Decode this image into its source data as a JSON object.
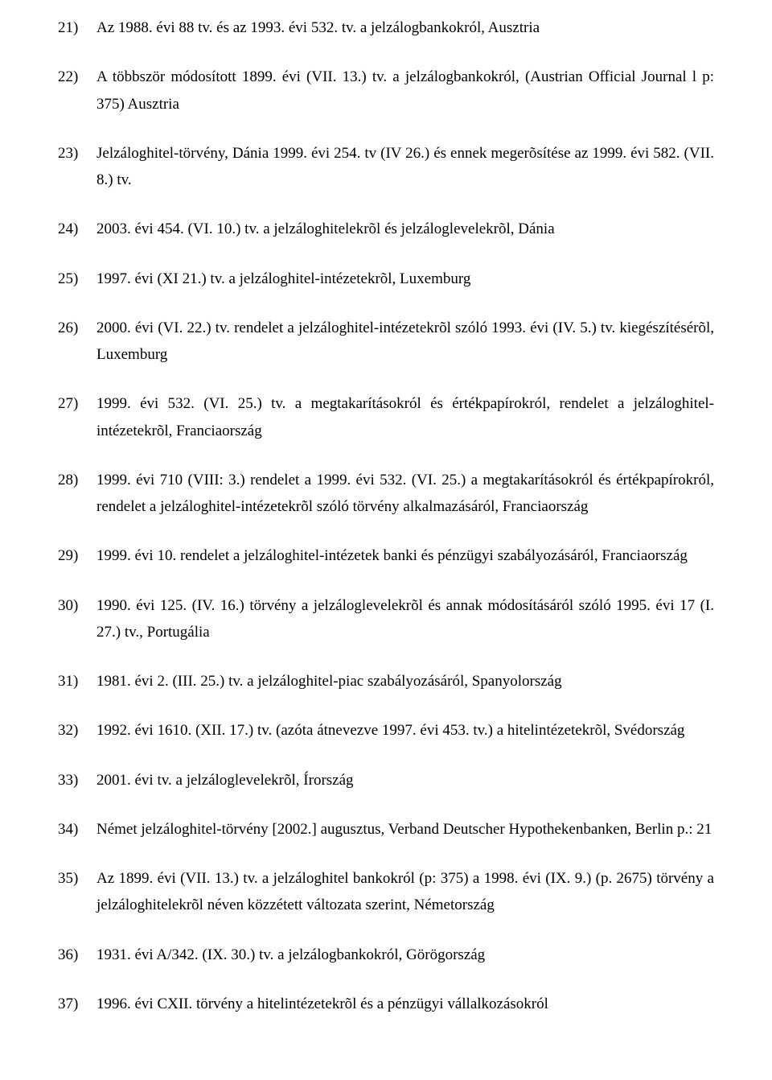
{
  "entries": [
    {
      "num": "21)",
      "text": "Az 1988. évi 88 tv. és az 1993. évi 532. tv. a jelzálogbankokról, Ausztria",
      "justify": false
    },
    {
      "num": "22)",
      "text": "A többször módosított 1899. évi (VII. 13.) tv. a jelzálogbankokról, (Austrian Official Journal l p: 375) Ausztria",
      "justify": true
    },
    {
      "num": "23)",
      "text": "Jelzáloghitel-törvény, Dánia 1999. évi 254. tv (IV 26.) és ennek megerõsítése az 1999. évi 582. (VII. 8.) tv.",
      "justify": true
    },
    {
      "num": "24)",
      "text": "2003. évi 454. (VI. 10.) tv. a jelzáloghitelekrõl és jelzáloglevelekrõl, Dánia",
      "justify": false
    },
    {
      "num": "25)",
      "text": "1997. évi (XI 21.) tv. a jelzáloghitel-intézetekrõl, Luxemburg",
      "justify": false
    },
    {
      "num": "26)",
      "text": "2000. évi (VI. 22.) tv. rendelet a jelzáloghitel-intézetekrõl szóló 1993. évi (IV. 5.) tv. kiegészítésérõl, Luxemburg",
      "justify": true
    },
    {
      "num": "27)",
      "text": "1999. évi 532. (VI. 25.) tv. a megtakarításokról és értékpapírokról, rendelet a jelzáloghitel-intézetekrõl, Franciaország",
      "justify": true
    },
    {
      "num": "28)",
      "text": "1999. évi 710 (VIII: 3.) rendelet a 1999. évi 532. (VI. 25.) a megtakarításokról és értékpapírokról, rendelet a jelzáloghitel-intézetekrõl szóló törvény alkalmazásáról, Franciaország",
      "justify": true
    },
    {
      "num": "29)",
      "text": "1999. évi 10. rendelet a jelzáloghitel-intézetek banki és pénzügyi szabályozásáról, Franciaország",
      "justify": true
    },
    {
      "num": "30)",
      "text": "1990. évi 125. (IV. 16.) törvény a jelzáloglevelekrõl és annak módosításáról szóló 1995. évi 17 (I. 27.) tv., Portugália",
      "justify": true
    },
    {
      "num": "31)",
      "text": "1981. évi 2. (III. 25.) tv. a jelzáloghitel-piac szabályozásáról, Spanyolország",
      "justify": false
    },
    {
      "num": "32)",
      "text": "1992. évi 1610. (XII. 17.) tv. (azóta átnevezve 1997. évi 453. tv.) a hitelintézetekrõl, Svédország",
      "justify": true
    },
    {
      "num": "33)",
      "text": "2001. évi tv. a jelzáloglevelekrõl, Írország",
      "justify": false
    },
    {
      "num": "34)",
      "text": "Német jelzáloghitel-törvény [2002.] augusztus, Verband Deutscher Hypothekenbanken, Berlin p.: 21",
      "justify": true
    },
    {
      "num": "35)",
      "text": "Az 1899. évi (VII. 13.) tv. a jelzáloghitel bankokról (p: 375) a 1998. évi (IX. 9.) (p. 2675) törvény a jelzáloghitelekrõl néven közzétett változata szerint, Németország",
      "justify": true
    },
    {
      "num": "36)",
      "text": "1931. évi A/342. (IX. 30.) tv. a jelzálogbankokról, Görögország",
      "justify": false
    },
    {
      "num": "37)",
      "text": "1996. évi CXII. törvény a hitelintézetekrõl és a pénzügyi vállalkozásokról",
      "justify": false
    }
  ]
}
